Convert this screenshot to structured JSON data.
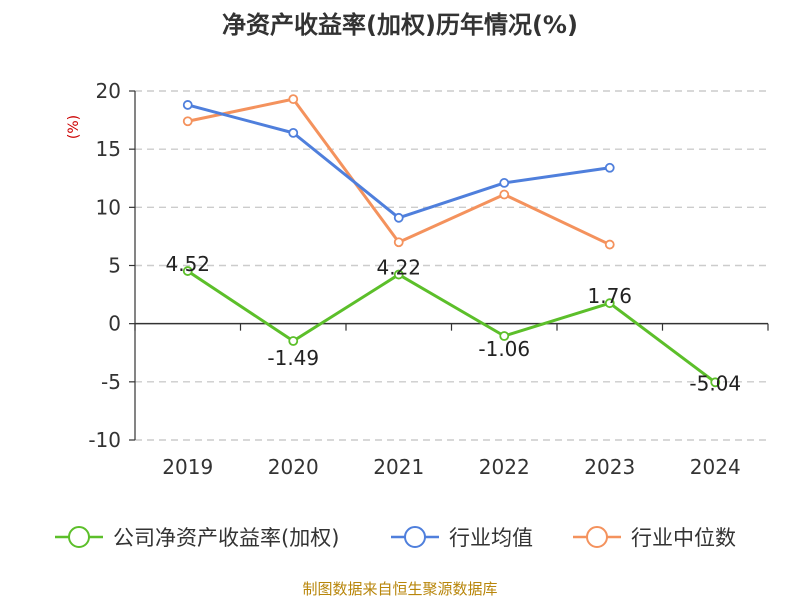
{
  "chart_data": {
    "type": "line",
    "title": "净资产收益率(加权)历年情况(%)",
    "ylabel": "(%)",
    "xlabel": "",
    "categories": [
      "2019",
      "2020",
      "2021",
      "2022",
      "2023",
      "2024"
    ],
    "ylim": [
      -10,
      20
    ],
    "yticks": [
      -10,
      -5,
      0,
      5,
      10,
      15,
      20
    ],
    "grid": true,
    "legend_position": "bottom",
    "series": [
      {
        "name": "公司净资产收益率(加权)",
        "color": "#5cbf2a",
        "values": [
          4.52,
          -1.49,
          4.22,
          -1.06,
          1.76,
          -5.04
        ],
        "labels": [
          "4.52",
          "-1.49",
          "4.22",
          "-1.06",
          "1.76",
          "-5.04"
        ]
      },
      {
        "name": "行业均值",
        "color": "#4f7fdc",
        "values": [
          18.8,
          16.4,
          9.1,
          12.1,
          13.4,
          null
        ]
      },
      {
        "name": "行业中位数",
        "color": "#f4925d",
        "values": [
          17.4,
          19.3,
          7.0,
          11.1,
          6.8,
          null
        ]
      }
    ]
  },
  "source": "制图数据来自恒生聚源数据库"
}
